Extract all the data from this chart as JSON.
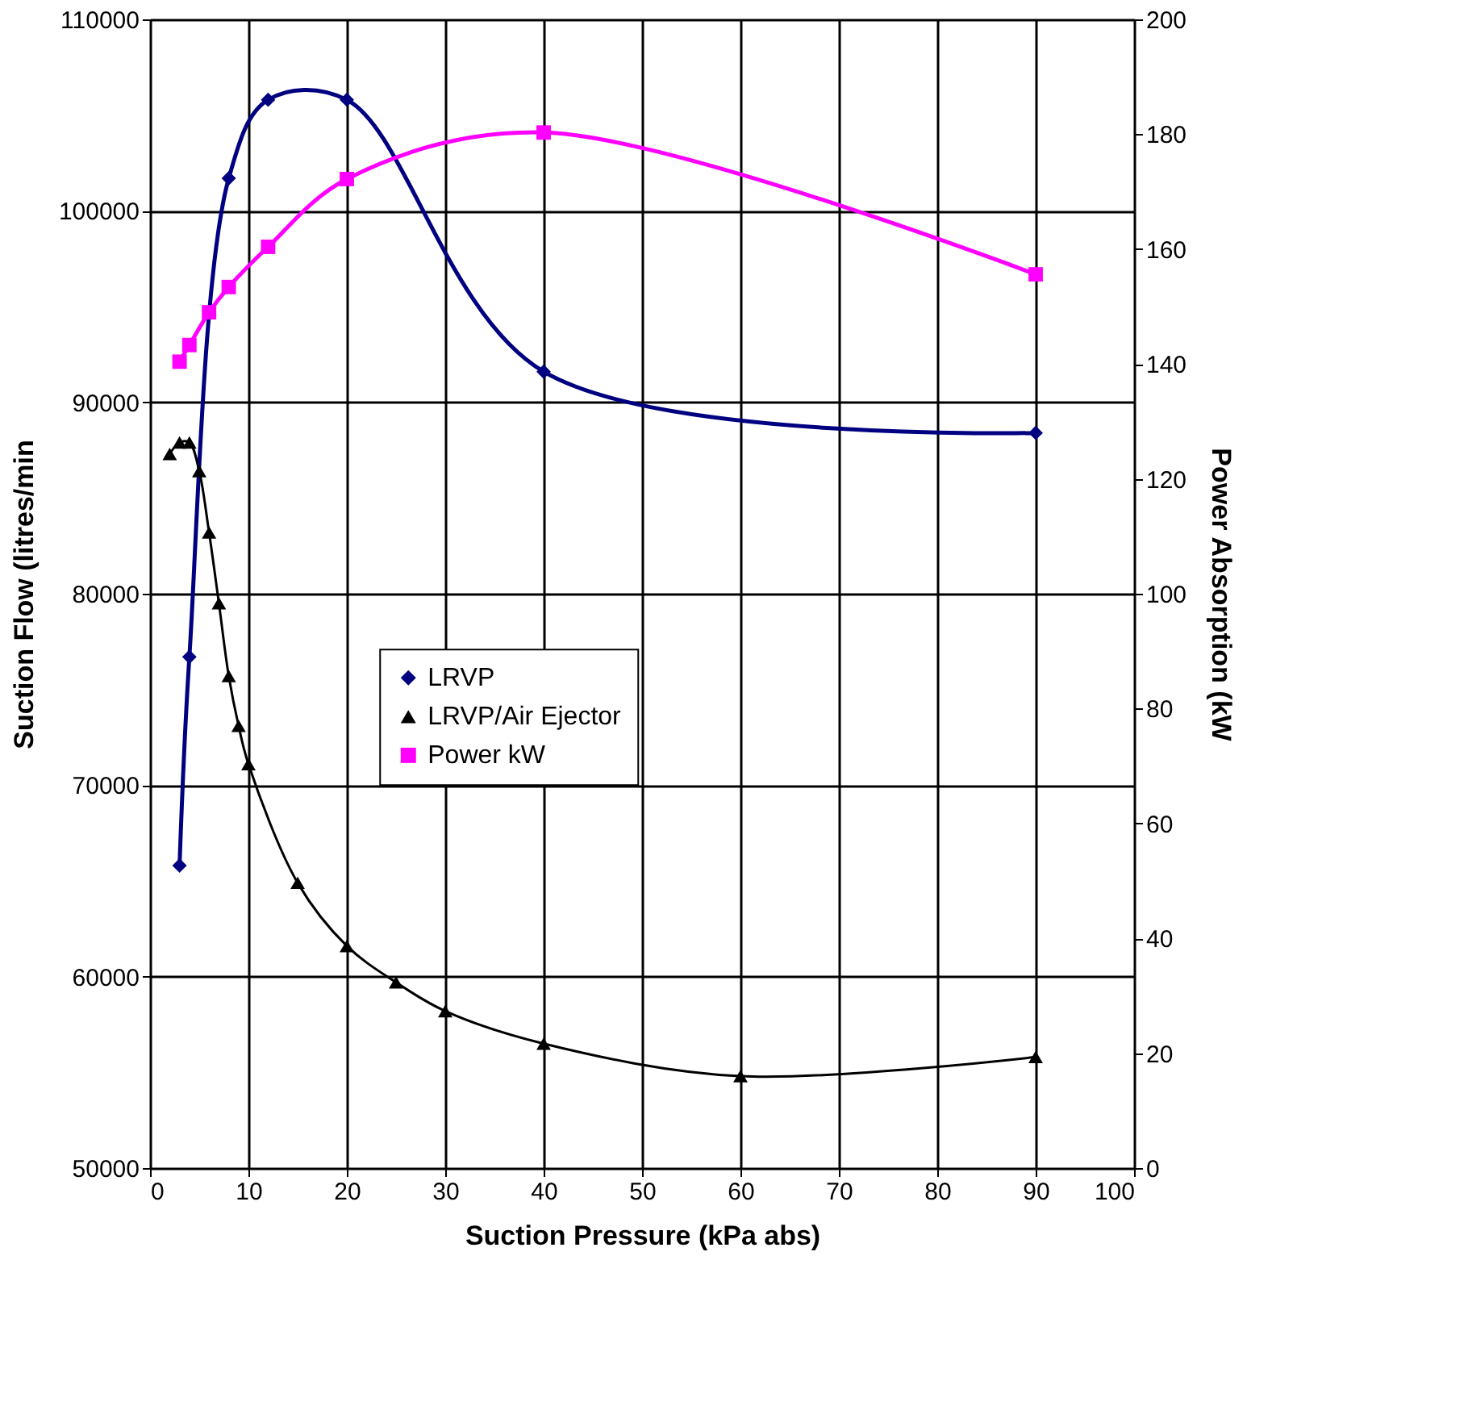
{
  "chart_data": {
    "type": "line",
    "xlabel": "Suction Pressure (kPa abs)",
    "ylabel": "Suction Flow (litres/min",
    "y2label": "Power Absorption (kW",
    "xlim": [
      0,
      100
    ],
    "xticks": [
      0,
      10,
      20,
      30,
      40,
      50,
      60,
      70,
      80,
      90,
      100
    ],
    "ylim": [
      50000,
      110000
    ],
    "yticks": [
      50000,
      60000,
      70000,
      80000,
      90000,
      100000,
      110000
    ],
    "y2lim": [
      0,
      200
    ],
    "y2ticks": [
      0,
      20,
      40,
      60,
      80,
      100,
      120,
      140,
      160,
      180,
      200
    ],
    "grid": true,
    "legend": "center",
    "series": [
      {
        "name": "LRVP",
        "color": "#000080",
        "marker": "diamond",
        "x": [
          3,
          4,
          8,
          12,
          20,
          40,
          90
        ],
        "values": [
          65800,
          76700,
          101700,
          105800,
          105800,
          91600,
          88400
        ]
      },
      {
        "name": "LRVP/Air Ejector",
        "color": "#000000",
        "marker": "triangle",
        "x": [
          2,
          3,
          4,
          5,
          6,
          7,
          8,
          9,
          10,
          15,
          20,
          25,
          30,
          40,
          60,
          90
        ],
        "values": [
          87300,
          87900,
          87900,
          86400,
          83200,
          79500,
          75700,
          73100,
          71100,
          64900,
          61600,
          59700,
          58200,
          56500,
          54800,
          55800
        ]
      },
      {
        "name": "Power kW",
        "color": "#ff00ff",
        "marker": "square",
        "axis": "y2",
        "x": [
          3,
          4,
          6,
          8,
          12,
          20,
          40,
          90
        ],
        "values": [
          140.4,
          143.3,
          149,
          153.4,
          160.4,
          172.2,
          180.3,
          155.6
        ]
      }
    ]
  }
}
